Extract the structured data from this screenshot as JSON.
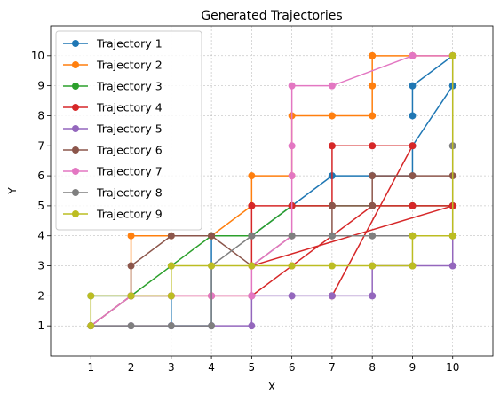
{
  "chart_data": {
    "type": "line",
    "title": "Generated Trajectories",
    "xlabel": "X",
    "ylabel": "Y",
    "xlim": [
      0,
      11
    ],
    "ylim": [
      0,
      11
    ],
    "xticks": [
      1,
      2,
      3,
      4,
      5,
      6,
      7,
      8,
      9,
      10
    ],
    "yticks": [
      1,
      2,
      3,
      4,
      5,
      6,
      7,
      8,
      9,
      10
    ],
    "grid": true,
    "legend_position": "top-left",
    "series": [
      {
        "name": "Trajectory 1",
        "color": "#1f77b4",
        "x": [
          1,
          1,
          2,
          3,
          3,
          4,
          4,
          5,
          6,
          7,
          8,
          9,
          9,
          10,
          10,
          9,
          9
        ],
        "y": [
          1,
          2,
          2,
          2,
          1,
          1,
          4,
          4,
          5,
          6,
          6,
          6,
          7,
          9,
          10,
          9,
          8
        ]
      },
      {
        "name": "Trajectory 2",
        "color": "#ff7f0e",
        "x": [
          2,
          2,
          3,
          4,
          5,
          5,
          6,
          6,
          7,
          8,
          8,
          8,
          9,
          10
        ],
        "y": [
          2,
          4,
          4,
          4,
          5,
          6,
          6,
          8,
          8,
          8,
          9,
          10,
          10,
          10
        ]
      },
      {
        "name": "Trajectory 3",
        "color": "#2ca02c",
        "x": [
          1,
          2,
          3,
          4,
          5,
          6,
          7,
          8,
          9,
          10
        ],
        "y": [
          1,
          2,
          3,
          4,
          4,
          5,
          5,
          5,
          5,
          5
        ]
      },
      {
        "name": "Trajectory 4",
        "color": "#d62728",
        "x": [
          1,
          2,
          3,
          4,
          5,
          6,
          7,
          8,
          9,
          10,
          5,
          5,
          6,
          7,
          7,
          8,
          9,
          7
        ],
        "y": [
          1,
          2,
          2,
          2,
          2,
          3,
          4,
          5,
          5,
          5,
          3,
          5,
          5,
          5,
          7,
          7,
          7,
          2
        ]
      },
      {
        "name": "Trajectory 5",
        "color": "#9467bd",
        "x": [
          1,
          2,
          3,
          4,
          5,
          5,
          6,
          7,
          8,
          8,
          9,
          10,
          10,
          10
        ],
        "y": [
          1,
          1,
          1,
          1,
          1,
          2,
          2,
          2,
          2,
          3,
          3,
          3,
          4,
          10
        ]
      },
      {
        "name": "Trajectory 6",
        "color": "#8c564b",
        "x": [
          1,
          2,
          2,
          3,
          4,
          5,
          6,
          7,
          7,
          8,
          8,
          9,
          10
        ],
        "y": [
          1,
          2,
          3,
          4,
          4,
          3,
          4,
          4,
          5,
          5,
          6,
          6,
          6
        ]
      },
      {
        "name": "Trajectory 7",
        "color": "#e377c2",
        "x": [
          1,
          2,
          3,
          4,
          5,
          5,
          6,
          6,
          6,
          6,
          7,
          9,
          10
        ],
        "y": [
          1,
          2,
          2,
          2,
          2,
          3,
          4,
          6,
          7,
          9,
          9,
          10,
          10
        ]
      },
      {
        "name": "Trajectory 8",
        "color": "#7f7f7f",
        "x": [
          1,
          2,
          3,
          4,
          4,
          5,
          6,
          7,
          8,
          9,
          10,
          10
        ],
        "y": [
          1,
          1,
          1,
          1,
          3,
          4,
          4,
          4,
          4,
          4,
          4,
          7
        ]
      },
      {
        "name": "Trajectory 9",
        "color": "#bcbd22",
        "x": [
          1,
          1,
          2,
          3,
          3,
          4,
          5,
          6,
          7,
          8,
          9,
          9,
          10,
          10
        ],
        "y": [
          1,
          2,
          2,
          2,
          3,
          3,
          3,
          3,
          3,
          3,
          3,
          4,
          4,
          10
        ]
      }
    ]
  }
}
